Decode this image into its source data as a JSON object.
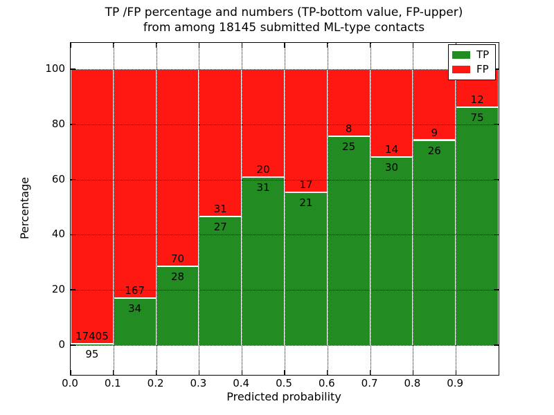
{
  "figure": {
    "title_line1": "TP /FP percentage and numbers (TP-bottom value, FP-upper)",
    "title_line2": "from among 18145 submitted ML-type contacts"
  },
  "axes": {
    "xlabel": "Predicted probability",
    "ylabel": "Percentage",
    "x_tick_labels": [
      "0.0",
      "0.1",
      "0.2",
      "0.3",
      "0.4",
      "0.5",
      "0.6",
      "0.7",
      "0.8",
      "0.9"
    ],
    "y_tick_labels": [
      "0",
      "20",
      "40",
      "60",
      "80",
      "100"
    ]
  },
  "legend": {
    "position": "upper right",
    "items": [
      {
        "label": "TP",
        "color": "#228b22"
      },
      {
        "label": "FP",
        "color": "#ff1812"
      }
    ]
  },
  "chart_data": {
    "type": "bar",
    "stacked": true,
    "normalized": "each 0.1-wide bin scaled to 100%, count labels annotated on segments",
    "title": "TP /FP percentage and numbers (TP-bottom value, FP-upper) from among 18145 submitted ML-type contacts",
    "xlabel": "Predicted probability",
    "ylabel": "Percentage",
    "xlim": [
      0.0,
      1.0
    ],
    "ylim": [
      -10.8,
      109.5
    ],
    "bin_width": 0.1,
    "categories": [
      "0.0-0.1",
      "0.1-0.2",
      "0.2-0.3",
      "0.3-0.4",
      "0.4-0.5",
      "0.5-0.6",
      "0.6-0.7",
      "0.7-0.8",
      "0.8-0.9",
      "0.9-1.0"
    ],
    "series": [
      {
        "name": "TP",
        "color": "#228b22",
        "counts": [
          95,
          34,
          28,
          27,
          31,
          21,
          25,
          30,
          26,
          75
        ]
      },
      {
        "name": "FP",
        "color": "#ff1812",
        "counts": [
          17405,
          167,
          70,
          31,
          20,
          17,
          8,
          14,
          9,
          12
        ]
      }
    ],
    "tp_percent_of_bin": [
      0.54,
      16.92,
      28.57,
      46.55,
      60.78,
      55.26,
      75.76,
      68.18,
      74.29,
      86.21
    ],
    "total_contacts": 18145,
    "grid": "dotted black, on top of bars",
    "legend_position": "upper right"
  }
}
